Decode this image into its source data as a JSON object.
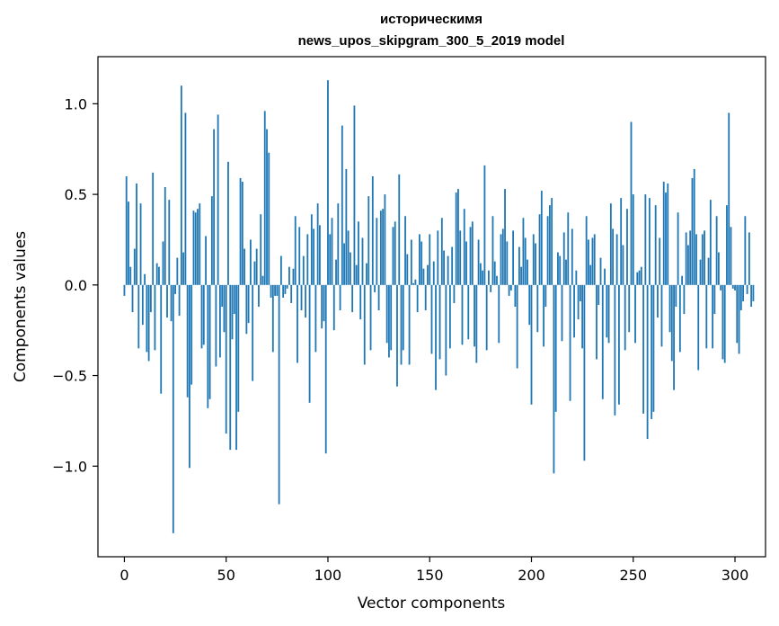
{
  "chart_data": {
    "type": "bar",
    "title_lines": [
      "историческимя",
      "news_upos_skipgram_300_5_2019 model"
    ],
    "xlabel": "Vector components",
    "ylabel": "Components values",
    "xlim": [
      -13,
      315
    ],
    "ylim": [
      -1.5,
      1.26
    ],
    "xticks": [
      0,
      50,
      100,
      150,
      200,
      250,
      300
    ],
    "yticks": [
      -1.0,
      -0.5,
      0.0,
      0.5,
      1.0
    ],
    "ytick_labels": [
      "−1.0",
      "−0.5",
      "0.0",
      "0.5",
      "1.0"
    ],
    "grid": false,
    "bar_color": "#1f77b4",
    "values": [
      -0.06,
      0.6,
      0.46,
      0.1,
      -0.15,
      0.2,
      0.56,
      -0.35,
      0.45,
      -0.22,
      0.06,
      -0.37,
      -0.42,
      -0.15,
      0.62,
      -0.36,
      0.12,
      0.1,
      -0.6,
      0.24,
      0.54,
      -0.18,
      0.47,
      -0.2,
      -1.37,
      -0.05,
      0.15,
      -0.17,
      1.1,
      0.18,
      0.95,
      -0.62,
      -1.01,
      -0.55,
      0.41,
      0.4,
      0.42,
      0.45,
      -0.35,
      -0.33,
      0.27,
      -0.68,
      -0.63,
      0.49,
      0.86,
      -0.45,
      0.94,
      -0.4,
      -0.12,
      -0.26,
      -0.82,
      0.68,
      -0.91,
      -0.3,
      -0.16,
      -0.91,
      -0.7,
      0.59,
      0.57,
      0.2,
      -0.27,
      -0.21,
      0.25,
      -0.53,
      0.13,
      0.2,
      -0.12,
      0.39,
      0.05,
      0.96,
      0.86,
      0.73,
      -0.07,
      -0.37,
      -0.06,
      -0.06,
      -1.21,
      0.16,
      -0.07,
      -0.05,
      -0.02,
      0.1,
      -0.1,
      0.09,
      0.38,
      -0.43,
      0.32,
      -0.14,
      0.16,
      -0.18,
      0.28,
      -0.65,
      0.39,
      0.31,
      -0.37,
      0.45,
      0.33,
      -0.24,
      -0.2,
      -0.93,
      1.13,
      0.28,
      0.37,
      -0.25,
      0.14,
      0.45,
      -0.14,
      0.88,
      0.23,
      0.64,
      0.3,
      0.18,
      -0.15,
      0.99,
      0.11,
      0.35,
      -0.19,
      0.26,
      -0.44,
      0.12,
      0.49,
      -0.36,
      0.6,
      -0.04,
      0.37,
      -0.14,
      0.41,
      0.42,
      0.5,
      -0.32,
      -0.4,
      -0.36,
      0.32,
      0.35,
      -0.56,
      0.61,
      -0.44,
      -0.36,
      0.38,
      0.17,
      -0.44,
      0.25,
      0.01,
      0.03,
      -0.15,
      0.28,
      0.24,
      0.09,
      -0.14,
      0.11,
      0.28,
      -0.38,
      0.13,
      -0.58,
      0.3,
      -0.41,
      0.37,
      0.19,
      -0.5,
      0.16,
      -0.35,
      0.21,
      -0.1,
      0.51,
      0.53,
      0.3,
      -0.33,
      0.42,
      0.24,
      -0.3,
      0.32,
      0.35,
      -0.34,
      -0.43,
      0.25,
      0.12,
      0.08,
      0.66,
      -0.36,
      0.08,
      -0.04,
      0.38,
      0.13,
      0.05,
      -0.32,
      0.28,
      0.31,
      0.53,
      0.24,
      -0.06,
      -0.03,
      0.3,
      -0.12,
      -0.46,
      0.21,
      0.1,
      0.37,
      0.26,
      0.14,
      -0.22,
      -0.66,
      0.28,
      0.23,
      -0.26,
      0.39,
      0.52,
      -0.34,
      -0.12,
      0.38,
      0.44,
      0.48,
      -1.04,
      -0.7,
      0.18,
      0.16,
      -0.31,
      0.29,
      0.14,
      0.4,
      -0.64,
      0.31,
      -0.29,
      0.08,
      -0.19,
      -0.09,
      -0.35,
      -0.97,
      0.38,
      0.25,
      0.11,
      0.26,
      0.28,
      -0.41,
      -0.11,
      0.15,
      -0.63,
      0.09,
      -0.29,
      -0.32,
      0.45,
      0.31,
      -0.72,
      0.28,
      -0.66,
      0.48,
      0.22,
      -0.36,
      0.42,
      -0.26,
      0.9,
      0.5,
      -0.32,
      0.07,
      0.08,
      0.1,
      -0.71,
      0.5,
      -0.85,
      0.48,
      -0.74,
      -0.7,
      0.44,
      -0.18,
      0.26,
      -0.34,
      0.57,
      0.51,
      0.56,
      -0.26,
      -0.42,
      -0.58,
      -0.12,
      0.4,
      -0.37,
      0.05,
      -0.16,
      0.29,
      0.22,
      0.3,
      0.59,
      0.64,
      0.28,
      -0.47,
      0.14,
      0.28,
      0.3,
      -0.35,
      0.15,
      0.47,
      -0.35,
      -0.16,
      0.38,
      0.18,
      -0.03,
      -0.41,
      -0.43,
      0.44,
      0.95,
      0.32,
      -0.02,
      -0.03,
      -0.32,
      -0.38,
      -0.14,
      -0.09,
      0.38,
      -0.05,
      0.29,
      -0.12,
      -0.09
    ]
  }
}
